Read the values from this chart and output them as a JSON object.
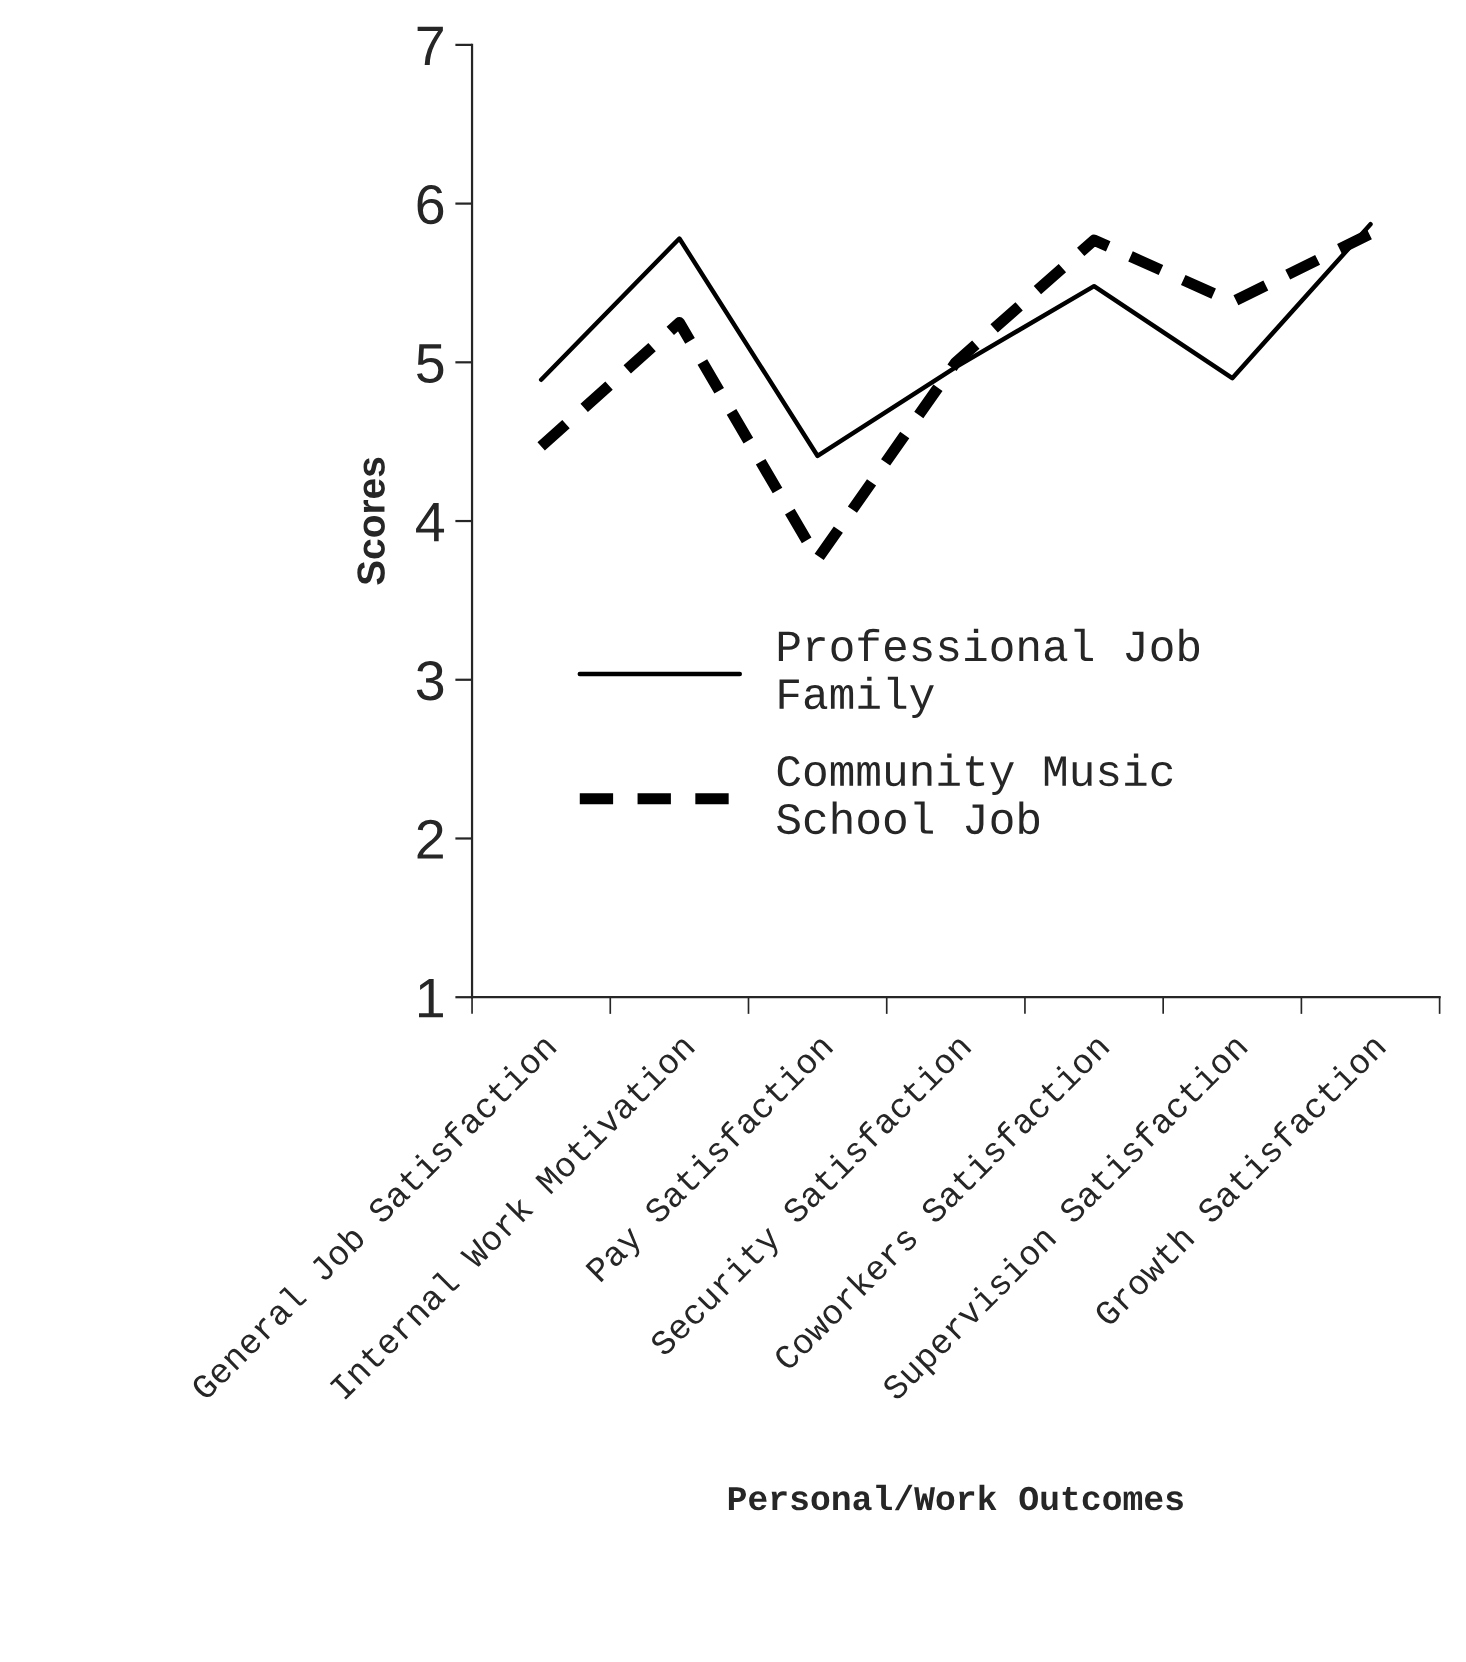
{
  "chart_data": {
    "type": "line",
    "xlabel": "Personal/Work Outcomes",
    "ylabel": "Scores",
    "categories": [
      "General Job Satisfaction",
      "Internal Work Motivation",
      "Pay Satisfaction",
      "Security Satisfaction",
      "Coworkers Satisfaction",
      "Supervision Satisfaction",
      "Growth Satisfaction"
    ],
    "series": [
      {
        "name": "Professional Job Family",
        "color": "#000000",
        "line_style": "solid",
        "values": [
          4.89,
          5.78,
          4.41,
          4.97,
          5.48,
          4.9,
          5.87
        ]
      },
      {
        "name": "Community Music School Job",
        "color": "#000000",
        "line_style": "dashed",
        "values": [
          4.47,
          5.25,
          3.76,
          5.0,
          5.77,
          5.38,
          5.81
        ]
      }
    ],
    "ylim": [
      1,
      7
    ],
    "yticks": [
      1,
      2,
      3,
      4,
      5,
      6,
      7
    ],
    "grid": false,
    "legend": "bottom left",
    "marker": "none"
  }
}
